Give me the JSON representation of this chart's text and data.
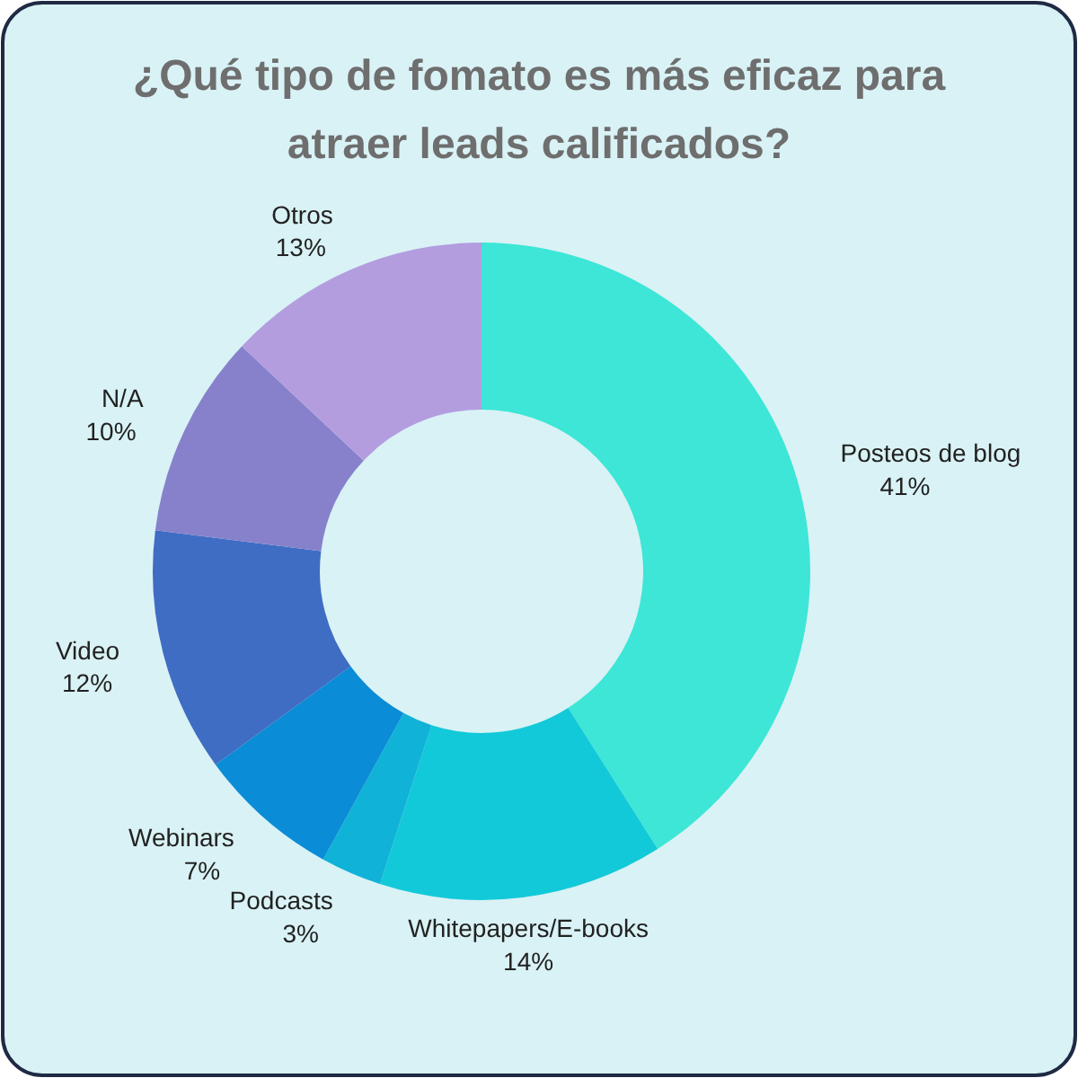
{
  "chart_data": {
    "type": "donut",
    "title": "¿Qué tipo de fomato es más eficaz para atraer leads calificados?",
    "categories": [
      "Posteos de blog",
      "Whitepapers/E-books",
      "Podcasts",
      "Webinars",
      "Video",
      "N/A",
      "Otros"
    ],
    "values": [
      41,
      14,
      3,
      7,
      12,
      10,
      13
    ],
    "colors": [
      "#3de6d6",
      "#12c9d9",
      "#10b2d8",
      "#0a8cd6",
      "#3f6dc3",
      "#8781cc",
      "#b39ddf"
    ],
    "value_labels": [
      "41%",
      "14%",
      "3%",
      "7%",
      "12%",
      "10%",
      "13%"
    ]
  }
}
